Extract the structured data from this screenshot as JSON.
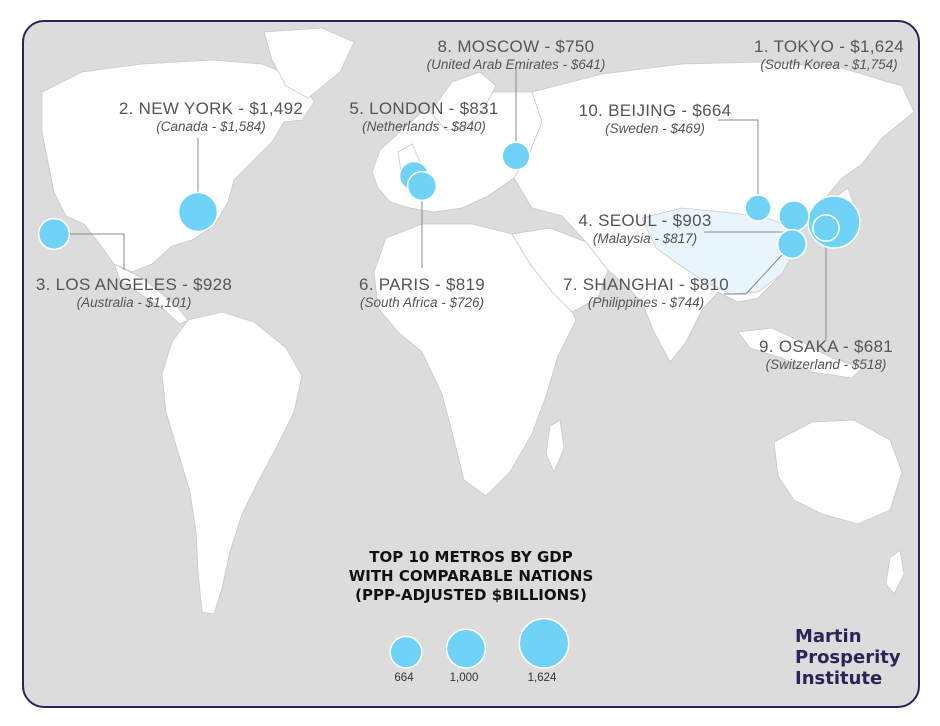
{
  "title_lines": [
    "TOP 10 METROS BY GDP",
    "WITH COMPARABLE NATIONS",
    "(PPP-ADJUSTED $BILLIONS)"
  ],
  "metros": [
    {
      "rank": 1,
      "city_label": "1. TOKYO - $1,624",
      "nation_label": "(South Korea - $1,754)",
      "gdp": 1624
    },
    {
      "rank": 2,
      "city_label": "2. NEW YORK - $1,492",
      "nation_label": "(Canada - $1,584)",
      "gdp": 1492
    },
    {
      "rank": 3,
      "city_label": "3. LOS ANGELES - $928",
      "nation_label": "(Australia - $1,101)",
      "gdp": 928
    },
    {
      "rank": 4,
      "city_label": "4. SEOUL - $903",
      "nation_label": "(Malaysia - $817)",
      "gdp": 903
    },
    {
      "rank": 5,
      "city_label": "5. LONDON - $831",
      "nation_label": "(Netherlands - $840)",
      "gdp": 831
    },
    {
      "rank": 6,
      "city_label": "6. PARIS - $819",
      "nation_label": "(South Africa - $726)",
      "gdp": 819
    },
    {
      "rank": 7,
      "city_label": "7. SHANGHAI - $810",
      "nation_label": "(Philippines - $744)",
      "gdp": 810
    },
    {
      "rank": 8,
      "city_label": "8. MOSCOW - $750",
      "nation_label": "(United Arab Emirates - $641)",
      "gdp": 750
    },
    {
      "rank": 9,
      "city_label": "9. OSAKA - $681",
      "nation_label": "(Switzerland - $518)",
      "gdp": 681
    },
    {
      "rank": 10,
      "city_label": "10. BEIJING - $664",
      "nation_label": "(Sweden - $469)",
      "gdp": 664
    }
  ],
  "legend": [
    {
      "label": "664",
      "value": 664
    },
    {
      "label": "1,000",
      "value": 1000
    },
    {
      "label": "1,624",
      "value": 1624
    }
  ],
  "brand_lines": [
    "Martin",
    "Prosperity",
    "Institute"
  ],
  "colors": {
    "bubble": "#6fd2f7",
    "land": "#ffffff",
    "ocean": "#dcdcdc",
    "frame": "#28245e",
    "highlight_country": "#e9f5fd"
  }
}
